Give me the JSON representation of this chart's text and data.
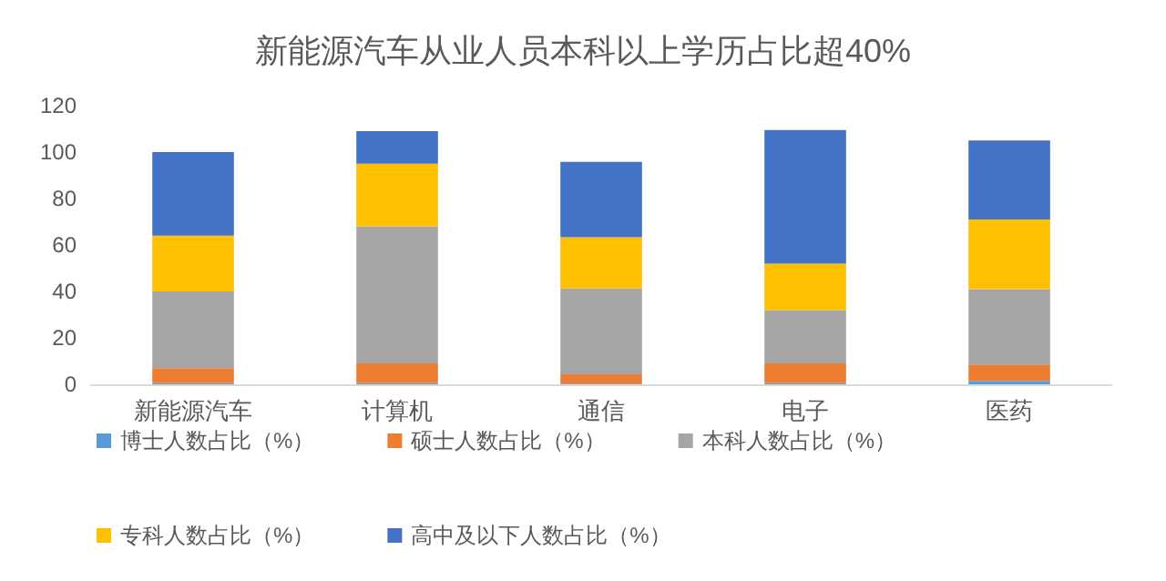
{
  "chart_data": {
    "type": "bar",
    "title": "新能源汽车从业人员本科以上学历占比超40%",
    "stacked": true,
    "categories": [
      "新能源汽车",
      "计算机",
      "通信",
      "电子",
      "医药"
    ],
    "series": [
      {
        "name": "博士人数占比（%）",
        "color": "#5b9bd5",
        "values": [
          0.5,
          0.5,
          0.3,
          0.5,
          1.5
        ]
      },
      {
        "name": "硕士人数占比（%）",
        "color": "#ed7d31",
        "values": [
          6.5,
          8.5,
          4,
          8.5,
          7
        ]
      },
      {
        "name": "本科人数占比（%）",
        "color": "#a5a5a5",
        "values": [
          33,
          59,
          37,
          23,
          32.5
        ]
      },
      {
        "name": "专科人数占比（%）",
        "color": "#ffc000",
        "values": [
          24,
          27,
          22,
          20,
          30
        ]
      },
      {
        "name": "高中及以下人数占比（%）",
        "color": "#4472c4",
        "values": [
          36,
          14,
          32.5,
          57.5,
          34
        ]
      }
    ],
    "ylim": [
      0,
      120
    ],
    "yticks": [
      0,
      20,
      40,
      60,
      80,
      100,
      120
    ],
    "grid": false,
    "legend": "bottom"
  }
}
